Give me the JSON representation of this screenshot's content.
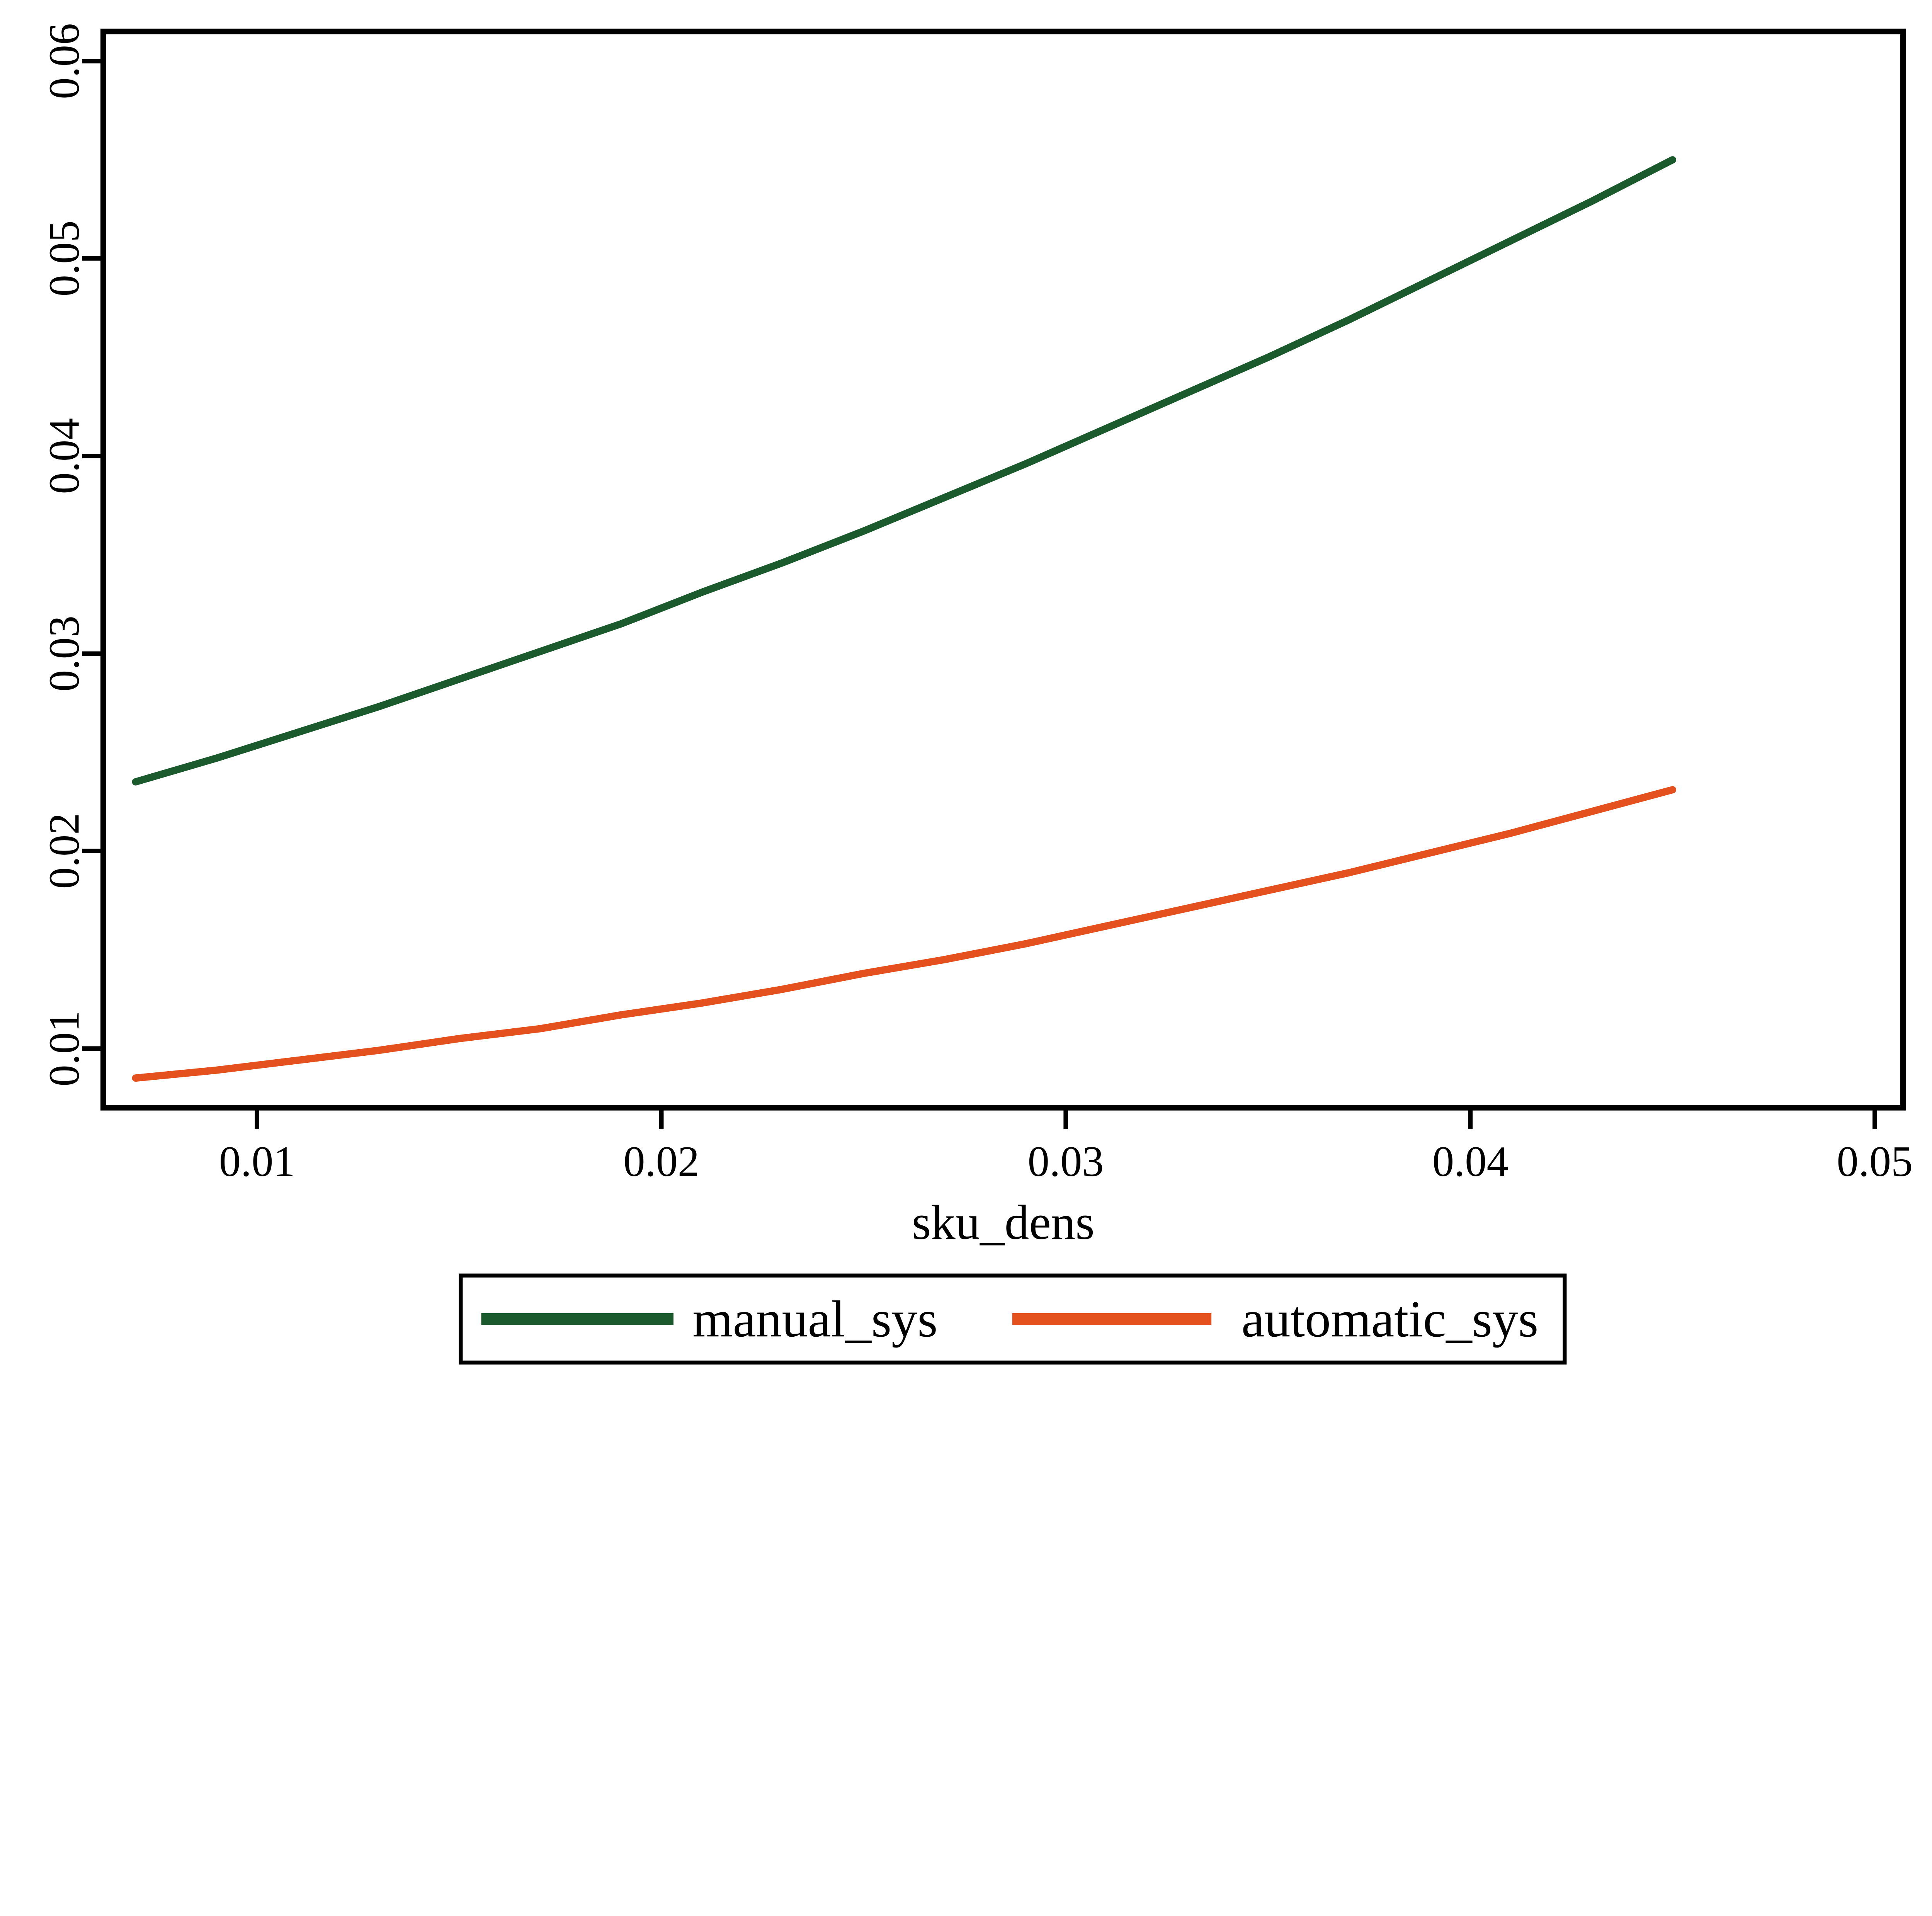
{
  "chart_data": {
    "type": "line",
    "title": "",
    "xlabel": "sku_dens",
    "ylabel": "",
    "xlim": [
      0.0062,
      0.0507
    ],
    "ylim": [
      0.007,
      0.0615
    ],
    "grid": false,
    "x_ticks": [
      0.01,
      0.02,
      0.03,
      0.04,
      0.05
    ],
    "x_tick_labels": [
      "0.01",
      "0.02",
      "0.03",
      "0.04",
      "0.05"
    ],
    "y_ticks": [
      0.01,
      0.02,
      0.03,
      0.04,
      0.05,
      0.06
    ],
    "y_tick_labels": [
      "0.01",
      "0.02",
      "0.03",
      "0.04",
      "0.05",
      "0.06"
    ],
    "legend": {
      "position": "bottom-outside",
      "border": true,
      "entries": [
        "manual_sys",
        "automatic_sys"
      ]
    },
    "x": [
      0.007,
      0.009,
      0.011,
      0.013,
      0.015,
      0.017,
      0.019,
      0.021,
      0.023,
      0.025,
      0.027,
      0.029,
      0.031,
      0.033,
      0.035,
      0.037,
      0.039,
      0.041,
      0.043,
      0.045
    ],
    "series": [
      {
        "name": "manual_sys",
        "color": "#1a5a2c",
        "values": [
          0.0235,
          0.0247,
          0.026,
          0.0273,
          0.0287,
          0.0301,
          0.0315,
          0.0331,
          0.0346,
          0.0362,
          0.0379,
          0.0396,
          0.0414,
          0.0432,
          0.045,
          0.0469,
          0.0489,
          0.0509,
          0.0529,
          0.055
        ]
      },
      {
        "name": "automatic_sys",
        "color": "#e4501e",
        "values": [
          0.0085,
          0.0089,
          0.0094,
          0.0099,
          0.0105,
          0.011,
          0.0117,
          0.0123,
          0.013,
          0.0138,
          0.0145,
          0.0153,
          0.0162,
          0.0171,
          0.018,
          0.0189,
          0.0199,
          0.0209,
          0.022,
          0.0231
        ]
      }
    ]
  }
}
